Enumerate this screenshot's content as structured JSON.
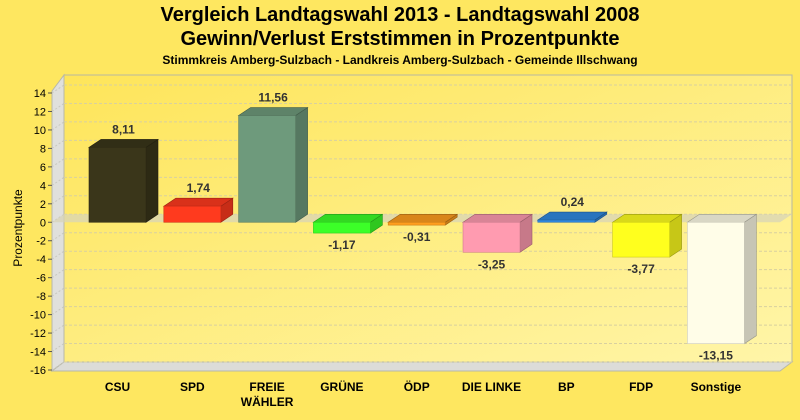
{
  "chart_data": {
    "type": "bar",
    "title": "Vergleich Landtagswahl 2013 - Landtagswahl 2008",
    "subtitle": "Gewinn/Verlust Erststimmen in Prozentpunkte",
    "subtitle2": "Stimmkreis Amberg-Sulzbach - Landkreis Amberg-Sulzbach - Gemeinde Illschwang",
    "xlabel": "",
    "ylabel": "Prozentpunkte",
    "ylim": [
      -16,
      14
    ],
    "yticks": [
      14,
      12,
      10,
      8,
      6,
      4,
      2,
      0,
      -2,
      -4,
      -6,
      -8,
      -10,
      -12,
      -14,
      -16
    ],
    "ytick_labels": [
      "14",
      "12",
      "10",
      "8",
      "6",
      "4",
      "2",
      "0",
      "-2",
      "-4",
      "-6",
      "-8",
      "-10",
      "-12",
      "-14",
      "-16"
    ],
    "grid": true,
    "categories": [
      "CSU",
      "SPD",
      "FREIE WÄHLER",
      "GRÜNE",
      "ÖDP",
      "DIE LINKE",
      "BP",
      "FDP",
      "Sonstige"
    ],
    "category_lines": [
      [
        "CSU"
      ],
      [
        "SPD"
      ],
      [
        "FREIE",
        "WÄHLER"
      ],
      [
        "GRÜNE"
      ],
      [
        "ÖDP"
      ],
      [
        "DIE LINKE"
      ],
      [
        "BP"
      ],
      [
        "FDP"
      ],
      [
        "Sonstige"
      ]
    ],
    "values": [
      8.11,
      1.74,
      11.56,
      -1.17,
      -0.31,
      -3.25,
      0.24,
      -3.77,
      -13.15
    ],
    "value_labels": [
      "8,11",
      "1,74",
      "11,56",
      "-1,17",
      "-0,31",
      "-3,25",
      "0,24",
      "-3,77",
      "-13,15"
    ],
    "colors": [
      "#3A361A",
      "#FF3A1E",
      "#6E9A7C",
      "#3CFF28",
      "#FF9E1E",
      "#FF9BB0",
      "#3088E0",
      "#FFFF1E",
      "#FFFDE8"
    ]
  }
}
